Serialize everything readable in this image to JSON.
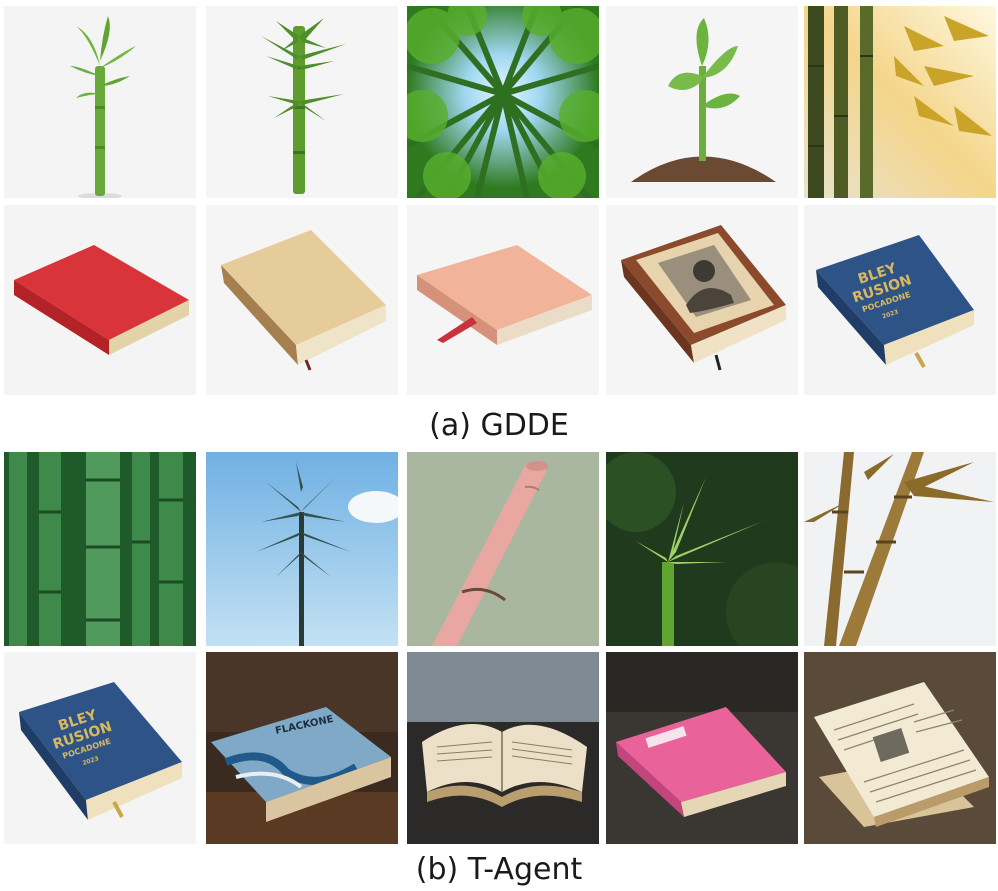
{
  "figure": {
    "section_a": {
      "caption": "(a) GDDE",
      "row_1": [
        {
          "subject": "young bamboo sprout on white"
        },
        {
          "subject": "bamboo stalk with leaves on white"
        },
        {
          "subject": "bamboo forest canopy from below"
        },
        {
          "subject": "cartoon seedling in soil mound"
        },
        {
          "subject": "bamboo stalks with golden backlight"
        }
      ],
      "row_2": [
        {
          "subject": "red closed book"
        },
        {
          "subject": "aged parchment book"
        },
        {
          "subject": "peach book with red ribbon"
        },
        {
          "subject": "leather book with portrait cover"
        },
        {
          "subject": "blue book with gold title"
        }
      ],
      "book_cover_text": [
        "BLEY",
        "RUSION",
        "POCADONE",
        "2023"
      ]
    },
    "section_b": {
      "caption": "(b) T-Agent",
      "row_1": [
        {
          "subject": "dense green bamboo stalks close-up"
        },
        {
          "subject": "bamboo tree against blue sky"
        },
        {
          "subject": "pink bamboo segment"
        },
        {
          "subject": "bamboo shoot with bokeh background"
        },
        {
          "subject": "dry bamboo stalks with leaves"
        }
      ],
      "row_2": [
        {
          "subject": "blue book with gold title"
        },
        {
          "subject": "book with wave cover on table"
        },
        {
          "subject": "open book on wet rock"
        },
        {
          "subject": "pink book on wet stone"
        },
        {
          "subject": "stack of open old books"
        }
      ],
      "book_cover_text": [
        "BLEY",
        "RUSION",
        "POCADONE",
        "2023"
      ],
      "wave_book_title": "FLACKONE"
    }
  },
  "colors": {
    "bamboo_green": "#5e9c2e",
    "leaf_green": "#6db33f",
    "book_red": "#d8343a",
    "book_blue": "#2e5487",
    "gold": "#c9a64a"
  }
}
